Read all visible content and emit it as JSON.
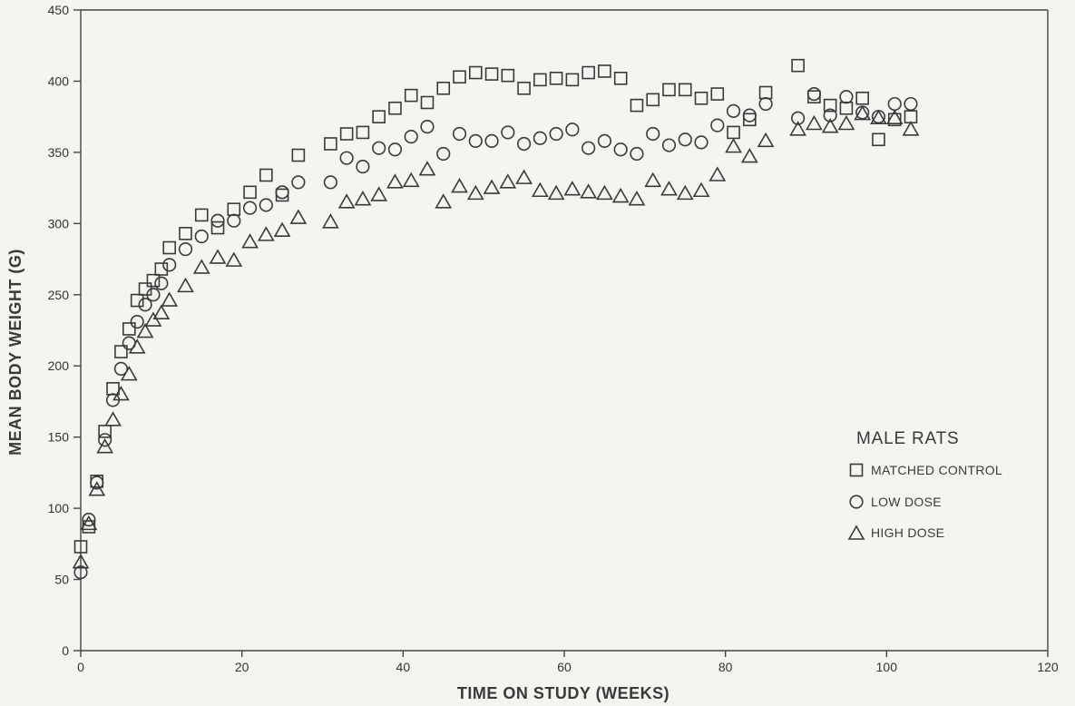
{
  "chart_data": {
    "type": "scatter",
    "title": "",
    "xlabel": "TIME ON STUDY (WEEKS)",
    "ylabel": "MEAN BODY WEIGHT (G)",
    "xlim": [
      0,
      120
    ],
    "ylim": [
      0,
      450
    ],
    "xticks": [
      0,
      20,
      40,
      60,
      80,
      100,
      120
    ],
    "yticks": [
      0,
      50,
      100,
      150,
      200,
      250,
      300,
      350,
      400,
      450
    ],
    "grid": false,
    "legend": {
      "title": "MALE RATS",
      "placement": "right",
      "entries": [
        "MATCHED CONTROL",
        "LOW DOSE",
        "HIGH DOSE"
      ]
    },
    "series": [
      {
        "name": "MATCHED CONTROL",
        "marker": "square",
        "points": [
          [
            0,
            73
          ],
          [
            1,
            87
          ],
          [
            2,
            119
          ],
          [
            3,
            154
          ],
          [
            4,
            184
          ],
          [
            5,
            210
          ],
          [
            6,
            226
          ],
          [
            7,
            246
          ],
          [
            8,
            254
          ],
          [
            9,
            260
          ],
          [
            10,
            268
          ],
          [
            11,
            283
          ],
          [
            13,
            293
          ],
          [
            15,
            306
          ],
          [
            17,
            297
          ],
          [
            19,
            310
          ],
          [
            21,
            322
          ],
          [
            23,
            334
          ],
          [
            25,
            320
          ],
          [
            27,
            348
          ],
          [
            31,
            356
          ],
          [
            33,
            363
          ],
          [
            35,
            364
          ],
          [
            37,
            375
          ],
          [
            39,
            381
          ],
          [
            41,
            390
          ],
          [
            43,
            385
          ],
          [
            45,
            395
          ],
          [
            47,
            403
          ],
          [
            49,
            406
          ],
          [
            51,
            405
          ],
          [
            53,
            404
          ],
          [
            55,
            395
          ],
          [
            57,
            401
          ],
          [
            59,
            402
          ],
          [
            61,
            401
          ],
          [
            63,
            406
          ],
          [
            65,
            407
          ],
          [
            67,
            402
          ],
          [
            69,
            383
          ],
          [
            71,
            387
          ],
          [
            73,
            394
          ],
          [
            75,
            394
          ],
          [
            77,
            388
          ],
          [
            79,
            391
          ],
          [
            81,
            364
          ],
          [
            83,
            373
          ],
          [
            85,
            392
          ],
          [
            89,
            411
          ],
          [
            91,
            389
          ],
          [
            93,
            383
          ],
          [
            95,
            381
          ],
          [
            97,
            388
          ],
          [
            99,
            359
          ],
          [
            101,
            373
          ],
          [
            103,
            375
          ]
        ]
      },
      {
        "name": "LOW DOSE",
        "marker": "circle",
        "points": [
          [
            0,
            55
          ],
          [
            1,
            92
          ],
          [
            2,
            118
          ],
          [
            3,
            148
          ],
          [
            4,
            176
          ],
          [
            5,
            198
          ],
          [
            6,
            216
          ],
          [
            7,
            231
          ],
          [
            8,
            243
          ],
          [
            9,
            250
          ],
          [
            10,
            258
          ],
          [
            11,
            271
          ],
          [
            13,
            282
          ],
          [
            15,
            291
          ],
          [
            17,
            302
          ],
          [
            19,
            302
          ],
          [
            21,
            311
          ],
          [
            23,
            313
          ],
          [
            25,
            322
          ],
          [
            27,
            329
          ],
          [
            31,
            329
          ],
          [
            33,
            346
          ],
          [
            35,
            340
          ],
          [
            37,
            353
          ],
          [
            39,
            352
          ],
          [
            41,
            361
          ],
          [
            43,
            368
          ],
          [
            45,
            349
          ],
          [
            47,
            363
          ],
          [
            49,
            358
          ],
          [
            51,
            358
          ],
          [
            53,
            364
          ],
          [
            55,
            356
          ],
          [
            57,
            360
          ],
          [
            59,
            363
          ],
          [
            61,
            366
          ],
          [
            63,
            353
          ],
          [
            65,
            358
          ],
          [
            67,
            352
          ],
          [
            69,
            349
          ],
          [
            71,
            363
          ],
          [
            73,
            355
          ],
          [
            75,
            359
          ],
          [
            77,
            357
          ],
          [
            79,
            369
          ],
          [
            81,
            379
          ],
          [
            83,
            376
          ],
          [
            85,
            384
          ],
          [
            89,
            374
          ],
          [
            91,
            391
          ],
          [
            93,
            376
          ],
          [
            95,
            389
          ],
          [
            97,
            378
          ],
          [
            99,
            375
          ],
          [
            101,
            384
          ],
          [
            103,
            384
          ]
        ]
      },
      {
        "name": "HIGH DOSE",
        "marker": "triangle",
        "points": [
          [
            0,
            62
          ],
          [
            1,
            89
          ],
          [
            2,
            113
          ],
          [
            3,
            143
          ],
          [
            4,
            162
          ],
          [
            5,
            180
          ],
          [
            6,
            194
          ],
          [
            7,
            213
          ],
          [
            8,
            224
          ],
          [
            9,
            232
          ],
          [
            10,
            237
          ],
          [
            11,
            246
          ],
          [
            13,
            256
          ],
          [
            15,
            269
          ],
          [
            17,
            276
          ],
          [
            19,
            274
          ],
          [
            21,
            287
          ],
          [
            23,
            292
          ],
          [
            25,
            295
          ],
          [
            27,
            304
          ],
          [
            31,
            301
          ],
          [
            33,
            315
          ],
          [
            35,
            317
          ],
          [
            37,
            320
          ],
          [
            39,
            329
          ],
          [
            41,
            330
          ],
          [
            43,
            338
          ],
          [
            45,
            315
          ],
          [
            47,
            326
          ],
          [
            49,
            321
          ],
          [
            51,
            325
          ],
          [
            53,
            329
          ],
          [
            55,
            332
          ],
          [
            57,
            323
          ],
          [
            59,
            321
          ],
          [
            61,
            324
          ],
          [
            63,
            322
          ],
          [
            65,
            321
          ],
          [
            67,
            319
          ],
          [
            69,
            317
          ],
          [
            71,
            330
          ],
          [
            73,
            324
          ],
          [
            75,
            321
          ],
          [
            77,
            323
          ],
          [
            79,
            334
          ],
          [
            81,
            354
          ],
          [
            83,
            347
          ],
          [
            85,
            358
          ],
          [
            89,
            366
          ],
          [
            91,
            370
          ],
          [
            93,
            368
          ],
          [
            95,
            370
          ],
          [
            97,
            377
          ],
          [
            99,
            374
          ],
          [
            101,
            374
          ],
          [
            103,
            366
          ]
        ]
      }
    ]
  }
}
